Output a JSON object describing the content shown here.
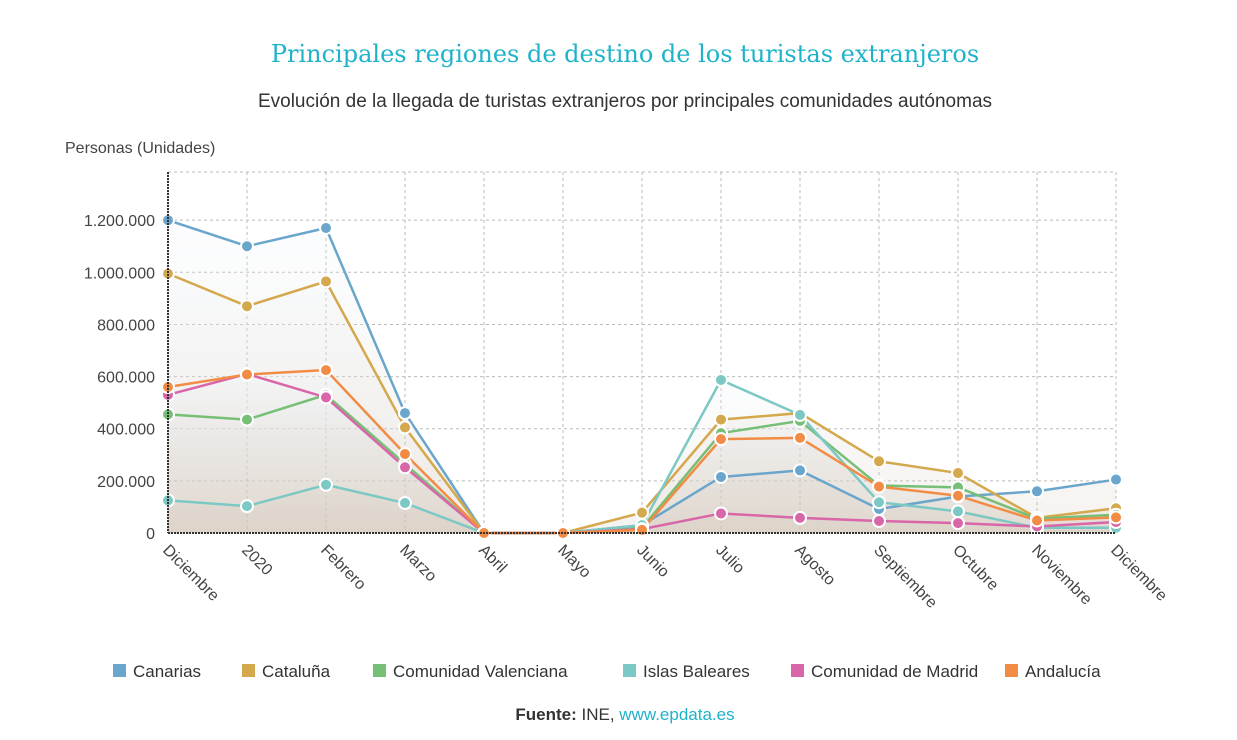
{
  "chart_data": {
    "type": "line",
    "title": "Principales regiones de destino de los turistas extranjeros",
    "subtitle": "Evolución de la llegada de turistas extranjeros por principales comunidades autónomas",
    "ylabel": "Personas (Unidades)",
    "xlabel": "",
    "ylim": [
      0,
      1380000
    ],
    "yticks": [
      0,
      200000,
      400000,
      600000,
      800000,
      1000000,
      1200000
    ],
    "ytick_labels": [
      "0",
      "200.000",
      "400.000",
      "600.000",
      "800.000",
      "1.000.000",
      "1.200.000"
    ],
    "categories": [
      "Diciembre",
      "2020",
      "Febrero",
      "Marzo",
      "Abril",
      "Mayo",
      "Junio",
      "Julio",
      "Agosto",
      "Septiembre",
      "Octubre",
      "Noviembre",
      "Diciembre"
    ],
    "grid": true,
    "legend_position": "bottom",
    "series": [
      {
        "name": "Canarias",
        "color": "#6aa6cc",
        "values": [
          1200000,
          1100000,
          1170000,
          460000,
          0,
          0,
          30000,
          215000,
          240000,
          92000,
          140000,
          160000,
          205000
        ]
      },
      {
        "name": "Cataluña",
        "color": "#d4a84c",
        "values": [
          995000,
          870000,
          965000,
          405000,
          0,
          0,
          78000,
          435000,
          460000,
          275000,
          230000,
          58000,
          95000
        ]
      },
      {
        "name": "Comunidad Valenciana",
        "color": "#77bf77",
        "values": [
          455000,
          435000,
          530000,
          265000,
          0,
          0,
          20000,
          383000,
          430000,
          182000,
          175000,
          55000,
          70000
        ]
      },
      {
        "name": "Islas Baleares",
        "color": "#7cc8c4",
        "values": [
          125000,
          103000,
          185000,
          115000,
          0,
          0,
          30000,
          587000,
          453000,
          118000,
          83000,
          20000,
          20000
        ]
      },
      {
        "name": "Comunidad de Madrid",
        "color": "#d966a8",
        "values": [
          530000,
          610000,
          520000,
          252000,
          0,
          0,
          15000,
          75000,
          58000,
          46000,
          38000,
          25000,
          42000
        ]
      },
      {
        "name": "Andalucía",
        "color": "#f28c45",
        "values": [
          560000,
          608000,
          625000,
          303000,
          0,
          0,
          12000,
          360000,
          365000,
          178000,
          143000,
          48000,
          60000
        ]
      }
    ]
  },
  "source": {
    "label": "Fuente:",
    "text": " INE, ",
    "link": "www.epdata.es"
  }
}
